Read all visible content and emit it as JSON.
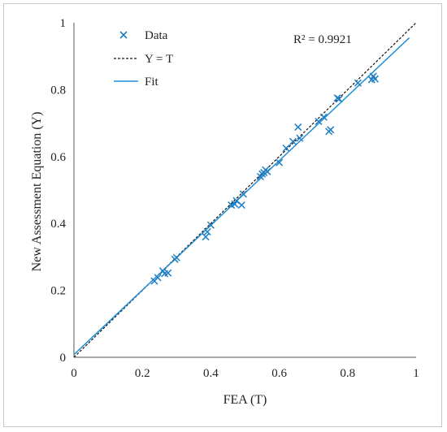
{
  "chart_data": {
    "type": "scatter",
    "xlabel": "FEA (T)",
    "ylabel": "New Assessment Equation (Y)",
    "xlim": [
      0,
      1
    ],
    "ylim": [
      0,
      1
    ],
    "xticks": [
      "0",
      "0.2",
      "0.4",
      "0.6",
      "0.8",
      "1"
    ],
    "yticks": [
      "0",
      "0.2",
      "0.4",
      "0.6",
      "0.8",
      "1"
    ],
    "grid": false,
    "annotation": "R² = 0.9921",
    "legend": {
      "position": "top-left",
      "entries": [
        {
          "label": "Data",
          "marker": "x",
          "color": "#1f7fc4"
        },
        {
          "label": "Y = T",
          "line": "dashed",
          "color": "#111111"
        },
        {
          "label": "Fit",
          "line": "solid",
          "color": "#1f8fd8"
        }
      ]
    },
    "series": [
      {
        "name": "Data",
        "points": [
          [
            0.235,
            0.228
          ],
          [
            0.245,
            0.238
          ],
          [
            0.26,
            0.258
          ],
          [
            0.265,
            0.25
          ],
          [
            0.275,
            0.252
          ],
          [
            0.295,
            0.293
          ],
          [
            0.3,
            0.298
          ],
          [
            0.385,
            0.36
          ],
          [
            0.39,
            0.375
          ],
          [
            0.4,
            0.395
          ],
          [
            0.46,
            0.455
          ],
          [
            0.47,
            0.458
          ],
          [
            0.475,
            0.468
          ],
          [
            0.49,
            0.455
          ],
          [
            0.495,
            0.488
          ],
          [
            0.545,
            0.54
          ],
          [
            0.55,
            0.548
          ],
          [
            0.555,
            0.552
          ],
          [
            0.56,
            0.56
          ],
          [
            0.565,
            0.555
          ],
          [
            0.6,
            0.582
          ],
          [
            0.62,
            0.625
          ],
          [
            0.64,
            0.645
          ],
          [
            0.655,
            0.688
          ],
          [
            0.66,
            0.655
          ],
          [
            0.715,
            0.705
          ],
          [
            0.73,
            0.718
          ],
          [
            0.745,
            0.675
          ],
          [
            0.75,
            0.68
          ],
          [
            0.77,
            0.775
          ],
          [
            0.775,
            0.772
          ],
          [
            0.83,
            0.82
          ],
          [
            0.87,
            0.83
          ],
          [
            0.875,
            0.84
          ],
          [
            0.88,
            0.832
          ]
        ]
      },
      {
        "name": "Y = T",
        "line": [
          [
            0,
            0
          ],
          [
            1,
            1
          ]
        ]
      },
      {
        "name": "Fit",
        "line": [
          [
            0,
            0.008
          ],
          [
            0.98,
            0.955
          ]
        ]
      }
    ]
  }
}
